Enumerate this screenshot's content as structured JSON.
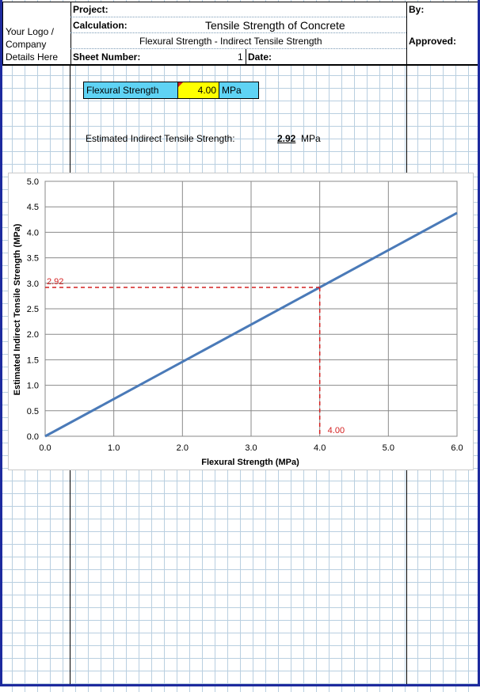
{
  "header": {
    "logo_text": "Your Logo / Company Details Here",
    "project_label": "Project:",
    "calculation_label": "Calculation:",
    "calculation_title": "Tensile Strength of Concrete",
    "calculation_subtitle": "Flexural Strength - Indirect Tensile Strength",
    "sheet_number_label": "Sheet Number:",
    "sheet_number_value": "1",
    "date_label": "Date:",
    "by_label": "By:",
    "approved_label": "Approved:"
  },
  "input": {
    "label": "Flexural Strength",
    "value": "4.00",
    "unit": "MPa"
  },
  "result": {
    "label": "Estimated Indirect Tensile Strength:",
    "value": "2.92",
    "unit": "MPa"
  },
  "chart_data": {
    "type": "line",
    "xlabel": "Flexural Strength (MPa)",
    "ylabel": "Estimated Indirect Tensile Strength (MPa)",
    "xlim": [
      0,
      6
    ],
    "ylim": [
      0,
      5
    ],
    "x_ticks": [
      "0.0",
      "1.0",
      "2.0",
      "3.0",
      "4.0",
      "5.0",
      "6.0"
    ],
    "y_ticks": [
      "0.0",
      "0.5",
      "1.0",
      "1.5",
      "2.0",
      "2.5",
      "3.0",
      "3.5",
      "4.0",
      "4.5",
      "5.0"
    ],
    "grid": true,
    "series": [
      {
        "x": [
          0,
          6
        ],
        "y": [
          0,
          4.38
        ],
        "color": "#4a7ab8"
      }
    ],
    "marker": {
      "x": 4.0,
      "y": 2.92,
      "x_label": "4.00",
      "y_label": "2.92",
      "color": "#d42020"
    }
  }
}
